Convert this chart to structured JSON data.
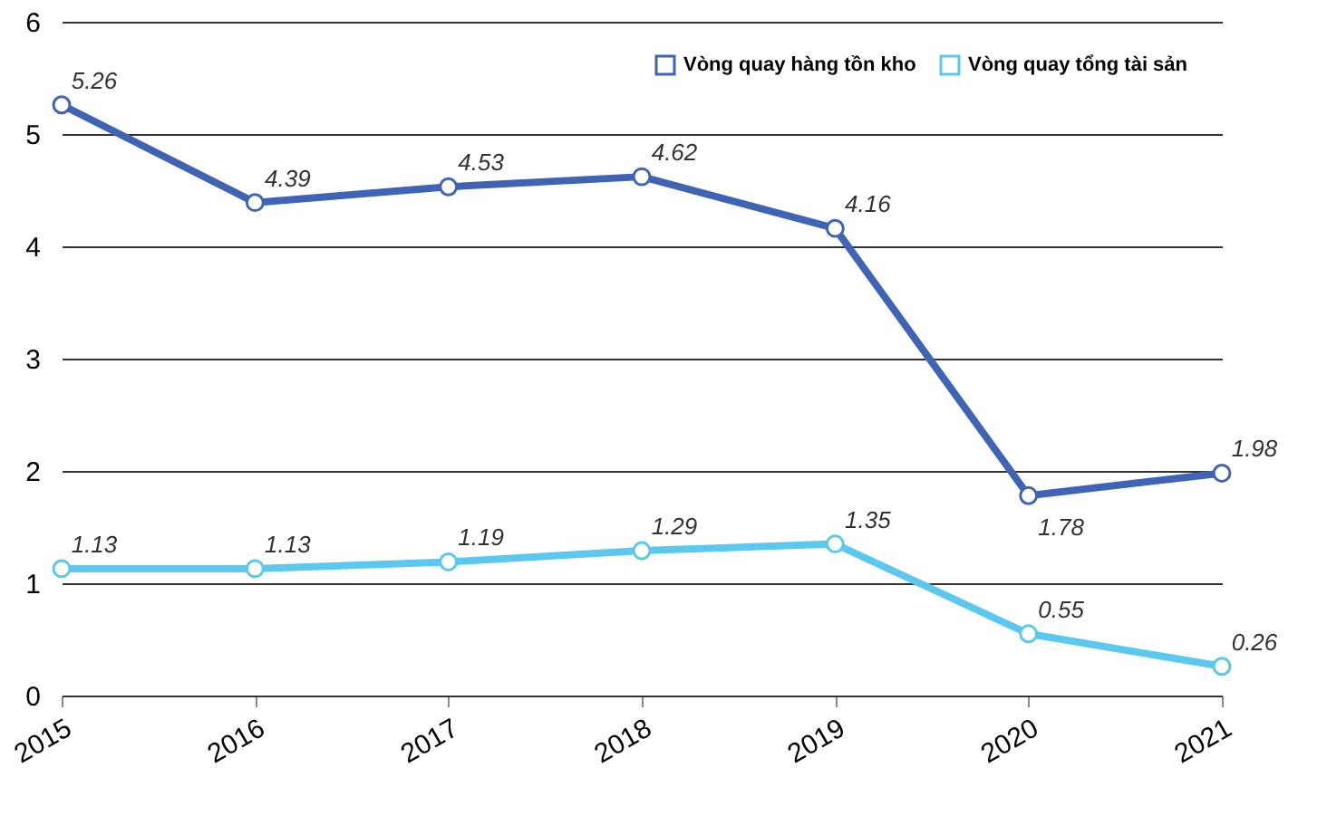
{
  "chart_data": {
    "type": "line",
    "categories": [
      "2015",
      "2016",
      "2017",
      "2018",
      "2019",
      "2020",
      "2021"
    ],
    "series": [
      {
        "name": "Vòng quay hàng tồn kho",
        "color": "#3f63b5",
        "values": [
          5.26,
          4.39,
          4.53,
          4.62,
          4.16,
          1.78,
          1.98
        ]
      },
      {
        "name": "Vòng quay tổng tài sản",
        "color": "#5bc8f0",
        "values": [
          1.13,
          1.13,
          1.19,
          1.29,
          1.35,
          0.55,
          0.26
        ]
      }
    ],
    "ylim": [
      0,
      6
    ],
    "yticks": [
      0,
      1,
      2,
      3,
      4,
      5,
      6
    ],
    "grid": "y",
    "legend": "top right",
    "marker": "circle",
    "line_style": "solid",
    "data_labels": true
  }
}
